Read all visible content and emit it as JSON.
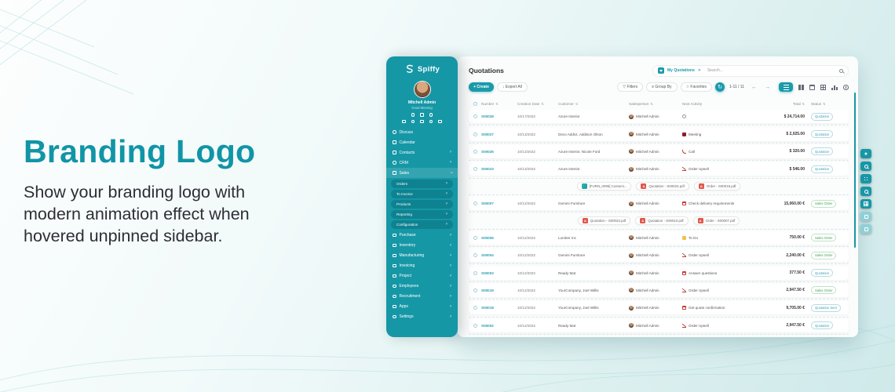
{
  "hero": {
    "title": "Branding Logo",
    "description": "Show your branding logo with modern animation effect when hovered unpinned sidebar.",
    "accent_color": "#1095a6"
  },
  "colors": {
    "brand_teal": "#1697a6",
    "button_teal": "#1b9aaa",
    "badge_quotation": "#3fa0b5",
    "badge_sale_order": "#43a552",
    "activity_red": "#c23b33",
    "note_yellow": "#f2c14e"
  },
  "app": {
    "sidebar": {
      "brand": "Spiffy",
      "user": {
        "name": "Mitchell Admin",
        "greeting": "Good Morning"
      },
      "quick_icons_row1": [
        "send-icon",
        "bell-icon",
        "inbox-icon"
      ],
      "quick_icons_row2": [
        "vehicle-icon",
        "messages-icon",
        "network-icon",
        "lock-icon",
        "location-icon"
      ],
      "menu": [
        {
          "label": "Discuss",
          "icon": "discuss-icon",
          "chevron": "",
          "round": true
        },
        {
          "label": "Calendar",
          "icon": "calendar-icon",
          "chevron": ""
        },
        {
          "label": "Contacts",
          "icon": "contacts-icon",
          "chevron": "›"
        },
        {
          "label": "CRM",
          "icon": "crm-icon",
          "chevron": "›",
          "round": true
        },
        {
          "label": "Sales",
          "icon": "sales-icon",
          "chevron": "v",
          "active": true
        },
        {
          "label": "Orders",
          "sub": true,
          "chevron": "›"
        },
        {
          "label": "To Invoice",
          "sub": true,
          "chevron": "›"
        },
        {
          "label": "Products",
          "sub": true,
          "chevron": "›"
        },
        {
          "label": "Reporting",
          "sub": true,
          "chevron": "›"
        },
        {
          "label": "Configuration",
          "sub": true,
          "chevron": "›"
        },
        {
          "label": "Purchase",
          "icon": "purchase-icon",
          "chevron": "›"
        },
        {
          "label": "Inventory",
          "icon": "inventory-icon",
          "chevron": "›"
        },
        {
          "label": "Manufacturing",
          "icon": "manufacturing-icon",
          "chevron": "›"
        },
        {
          "label": "Invoicing",
          "icon": "invoicing-icon",
          "chevron": "›"
        },
        {
          "label": "Project",
          "icon": "project-icon",
          "chevron": "›"
        },
        {
          "label": "Employees",
          "icon": "employees-icon",
          "chevron": "›",
          "round": true
        },
        {
          "label": "Recruitment",
          "icon": "recruitment-icon",
          "chevron": "›",
          "round": true
        },
        {
          "label": "Apps",
          "icon": "apps-icon",
          "chevron": "›"
        },
        {
          "label": "Settings",
          "icon": "settings-icon",
          "chevron": "›",
          "round": true
        }
      ]
    },
    "header": {
      "title": "Quotations",
      "filter_chip": "My Quotations",
      "filter_chip_close": "✕",
      "search_placeholder": "Search...",
      "create_label": "+ Create",
      "export_label": "↓ Export All",
      "filters_label": "▽ Filters",
      "group_by_label": "≡ Group By",
      "favorites_label": "☆ Favorites",
      "refresh_glyph": "↻",
      "pagination": "1-11 / 11",
      "prev_glyph": "←",
      "next_glyph": "→"
    },
    "side_buttons": [
      {
        "name": "favorite",
        "style": "star",
        "light": false
      },
      {
        "name": "search",
        "style": "mag",
        "light": false
      },
      {
        "name": "expand",
        "style": "dots",
        "light": false
      },
      {
        "name": "zoom",
        "style": "mag",
        "light": false
      },
      {
        "name": "apps-grid",
        "style": "grid",
        "light": false
      },
      {
        "name": "quick-chat",
        "style": "sq",
        "light": true
      },
      {
        "name": "quick-label",
        "style": "sq",
        "light": true
      }
    ],
    "table": {
      "columns": [
        {
          "label": "Number",
          "sort": true
        },
        {
          "label": "Creation Date",
          "sort": true
        },
        {
          "label": "Customer",
          "sort": true
        },
        {
          "label": "Salesperson",
          "sort": true
        },
        {
          "label": "Next Activity",
          "sort": false
        },
        {
          "label": "Total",
          "sort": true
        },
        {
          "label": "Status",
          "sort": true
        }
      ],
      "rows": [
        {
          "number": "S00028",
          "date": "10/17/2022",
          "customer": "Azure Interior",
          "salesperson": "Mitchell Admin",
          "activity": "",
          "activity_icon": "clock",
          "total": "$ 24,714.00",
          "status": "Quotation",
          "status_type": "quotation"
        },
        {
          "number": "S00027",
          "date": "10/13/2022",
          "customer": "Deco Addict, Addison Olson",
          "salesperson": "Mitchell Admin",
          "activity": "Meeting",
          "activity_icon": "meeting",
          "total": "$ 2,025.00",
          "status": "Quotation",
          "status_type": "quotation"
        },
        {
          "number": "S00026",
          "date": "10/13/2022",
          "customer": "Azure Interior, Nicole Ford",
          "salesperson": "Mitchell Admin",
          "activity": "Call",
          "activity_icon": "phone",
          "total": "$ 320.00",
          "status": "Quotation",
          "status_type": "quotation"
        },
        {
          "number": "S00023",
          "date": "10/13/2022",
          "customer": "Azure Interior",
          "salesperson": "Mitchell Admin",
          "activity": "Order Upsell",
          "activity_icon": "chart",
          "total": "$ 546.00",
          "status": "Quotation",
          "status_type": "quotation",
          "attachments": [
            {
              "icon": "img",
              "label": "[FURN_0096] Customi..."
            },
            {
              "icon": "pdf",
              "label": "Quotation - S00023.pdf"
            },
            {
              "icon": "pdf",
              "label": "Order - S00015.pdf"
            }
          ]
        },
        {
          "number": "S00007",
          "date": "10/12/2022",
          "customer": "Gemini Furniture",
          "salesperson": "Mitchell Admin",
          "activity": "Check delivery requirements",
          "activity_icon": "calendar",
          "total": "15,060.00 €",
          "status": "Sales Order",
          "status_type": "sale",
          "attachments": [
            {
              "icon": "pdf",
              "label": "Quotation - S00023.pdf"
            },
            {
              "icon": "pdf",
              "label": "Quotation - S00010.pdf"
            },
            {
              "icon": "pdf",
              "label": "Order - S00007.pdf"
            }
          ]
        },
        {
          "number": "S00006",
          "date": "10/12/2022",
          "customer": "Lumber Inc",
          "salesperson": "Mitchell Admin",
          "activity": "To Do",
          "activity_icon": "note",
          "total": "750.00 €",
          "status": "Sales Order",
          "status_type": "sale"
        },
        {
          "number": "S00004",
          "date": "10/12/2022",
          "customer": "Gemini Furniture",
          "salesperson": "Mitchell Admin",
          "activity": "Order Upsell",
          "activity_icon": "chart",
          "total": "2,240.00 €",
          "status": "Sales Order",
          "status_type": "sale"
        },
        {
          "number": "S00003",
          "date": "10/12/2022",
          "customer": "Ready Mat",
          "salesperson": "Mitchell Admin",
          "activity": "Answer questions",
          "activity_icon": "calendar",
          "total": "377.50 €",
          "status": "Quotation",
          "status_type": "quotation"
        },
        {
          "number": "S00019",
          "date": "10/12/2022",
          "customer": "YourCompany, Joel Willis",
          "salesperson": "Mitchell Admin",
          "activity": "Order Upsell",
          "activity_icon": "chart",
          "total": "2,947.50 €",
          "status": "Sales Order",
          "status_type": "sale"
        },
        {
          "number": "S00018",
          "date": "10/12/2022",
          "customer": "YourCompany, Joel Willis",
          "salesperson": "Mitchell Admin",
          "activity": "Get quote confirmation",
          "activity_icon": "calendar",
          "total": "9,705.00 €",
          "status": "Quotation Sent",
          "status_type": "sent"
        },
        {
          "number": "S00002",
          "date": "10/12/2022",
          "customer": "Ready Mat",
          "salesperson": "Mitchell Admin",
          "activity": "Order Upsell",
          "activity_icon": "chart",
          "total": "2,947.50 €",
          "status": "Quotation",
          "status_type": "quotation"
        }
      ]
    }
  }
}
